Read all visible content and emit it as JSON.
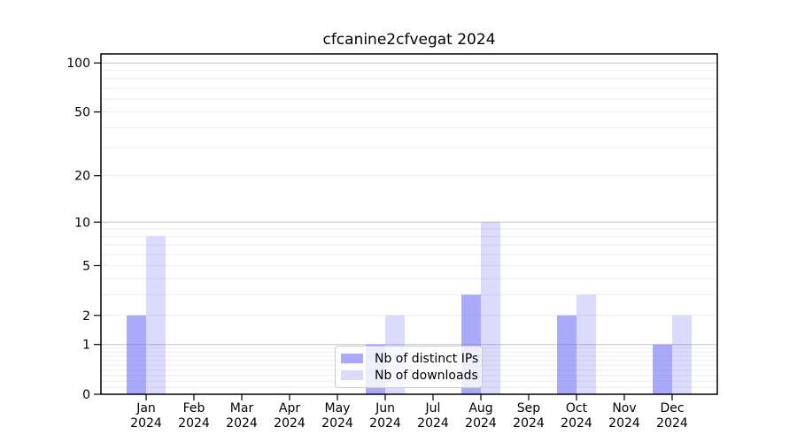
{
  "chart_data": {
    "type": "bar",
    "title": "cfcanine2cfvegat 2024",
    "categories": [
      "Jan",
      "Feb",
      "Mar",
      "Apr",
      "May",
      "Jun",
      "Jul",
      "Aug",
      "Sep",
      "Oct",
      "Nov",
      "Dec"
    ],
    "x_sublabel": "2024",
    "series": [
      {
        "name": "Nb of distinct IPs",
        "color": "rgba(100,100,245,0.55)",
        "legend_color": "#aaaaf9",
        "values": [
          2,
          0,
          0,
          0,
          0,
          1,
          0,
          3,
          0,
          2,
          0,
          1
        ]
      },
      {
        "name": "Nb of downloads",
        "color": "rgba(100,100,245,0.23)",
        "legend_color": "#dbdbfc",
        "values": [
          8,
          0,
          0,
          0,
          0,
          2,
          0,
          10,
          0,
          3,
          0,
          2
        ]
      }
    ],
    "yscale": "log1p",
    "ylim": [
      0,
      113
    ],
    "ytick_labels": [
      0,
      1,
      2,
      5,
      10,
      20,
      50,
      100
    ],
    "grid_major": [
      1,
      10,
      100
    ],
    "grid_minor": [
      0.1,
      0.2,
      0.3,
      0.4,
      0.5,
      0.6,
      0.7,
      0.8,
      0.9,
      2,
      3,
      4,
      5,
      6,
      7,
      8,
      9,
      20,
      30,
      40,
      50,
      60,
      70,
      80,
      90
    ],
    "grid_major_color": "#c2c2c2",
    "grid_minor_color": "#ededed",
    "axis_color": "#000000",
    "legend_position": "lower center",
    "background_color": "#ffffff"
  }
}
